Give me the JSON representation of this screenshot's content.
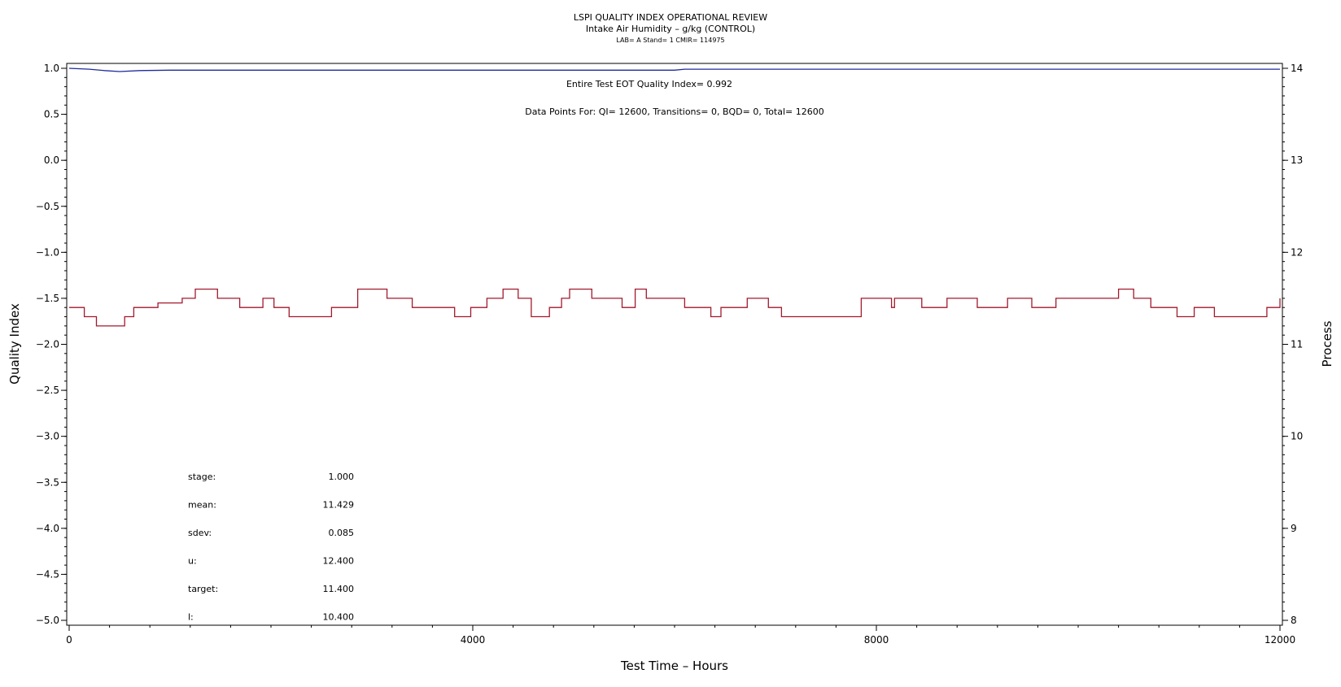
{
  "chart_data": {
    "type": "line",
    "title": "LSPI QUALITY INDEX OPERATIONAL REVIEW",
    "subtitle": "Intake Air Humidity – g/kg (CONTROL)",
    "subtitle2": "LAB= A Stand= 1 CMIR= 114975",
    "xlabel": "Test Time – Hours",
    "ylabel": "Quality Index",
    "y2label": "Process",
    "xlim": [
      0,
      12000
    ],
    "ylim": [
      -5.0,
      1.0
    ],
    "y2lim": [
      8,
      14
    ],
    "x_ticks": [
      {
        "v": 0,
        "label": "0"
      },
      {
        "v": 4000,
        "label": "4000"
      },
      {
        "v": 8000,
        "label": "8000"
      },
      {
        "v": 12000,
        "label": "12000"
      }
    ],
    "y_ticks": [
      {
        "v": 1.0,
        "label": "1.0"
      },
      {
        "v": 0.5,
        "label": "0.5"
      },
      {
        "v": 0.0,
        "label": "0.0"
      },
      {
        "v": -0.5,
        "label": "−0.5"
      },
      {
        "v": -1.0,
        "label": "−1.0"
      },
      {
        "v": -1.5,
        "label": "−1.5"
      },
      {
        "v": -2.0,
        "label": "−2.0"
      },
      {
        "v": -2.5,
        "label": "−2.5"
      },
      {
        "v": -3.0,
        "label": "−3.0"
      },
      {
        "v": -3.5,
        "label": "−3.5"
      },
      {
        "v": -4.0,
        "label": "−4.0"
      },
      {
        "v": -4.5,
        "label": "−4.5"
      },
      {
        "v": -5.0,
        "label": "−5.0"
      }
    ],
    "y2_ticks": [
      {
        "v": 14,
        "label": "14"
      },
      {
        "v": 13,
        "label": "13"
      },
      {
        "v": 12,
        "label": "12"
      },
      {
        "v": 11,
        "label": "11"
      },
      {
        "v": 10,
        "label": "10"
      },
      {
        "v": 9,
        "label": "9"
      },
      {
        "v": 8,
        "label": "8"
      }
    ],
    "annotations": {
      "eot": "Entire Test EOT Quality Index=    0.992",
      "points": "Data Points For: QI= 12600, Transitions=      0, BQD=      0, Total= 12600"
    },
    "stats": [
      {
        "label": "stage:",
        "value": "1.000"
      },
      {
        "label": "mean:",
        "value": "11.429"
      },
      {
        "label": "sdev:",
        "value": "0.085"
      },
      {
        "label": "u:",
        "value": "12.400"
      },
      {
        "label": "target:",
        "value": "11.400"
      },
      {
        "label": "l:",
        "value": "10.400"
      }
    ],
    "series": [
      {
        "axis": "left",
        "color": "#1f2a9c",
        "x": [
          0,
          200,
          350,
          500,
          700,
          1000,
          2000,
          4000,
          6000,
          6100,
          8000,
          10000,
          12000
        ],
        "y": [
          1.0,
          0.99,
          0.975,
          0.965,
          0.975,
          0.98,
          0.98,
          0.98,
          0.98,
          0.99,
          0.99,
          0.99,
          0.99
        ]
      },
      {
        "axis": "right",
        "color": "#a11a2e",
        "x": [
          0,
          150,
          270,
          550,
          640,
          880,
          1120,
          1250,
          1470,
          1690,
          1920,
          2030,
          2180,
          2600,
          2860,
          3150,
          3400,
          3820,
          3980,
          4140,
          4300,
          4450,
          4580,
          4760,
          4880,
          4960,
          5180,
          5480,
          5610,
          5720,
          6100,
          6360,
          6460,
          6720,
          6930,
          7060,
          7620,
          7850,
          8150,
          8180,
          8450,
          8700,
          9000,
          9300,
          9540,
          9780,
          10400,
          10550,
          10720,
          10980,
          11150,
          11350,
          11870,
          12000
        ],
        "y": [
          11.4,
          11.3,
          11.2,
          11.3,
          11.4,
          11.45,
          11.5,
          11.6,
          11.5,
          11.4,
          11.5,
          11.4,
          11.3,
          11.4,
          11.6,
          11.5,
          11.4,
          11.3,
          11.4,
          11.5,
          11.6,
          11.5,
          11.3,
          11.4,
          11.5,
          11.6,
          11.5,
          11.4,
          11.6,
          11.5,
          11.4,
          11.3,
          11.4,
          11.5,
          11.4,
          11.3,
          11.3,
          11.5,
          11.4,
          11.5,
          11.4,
          11.5,
          11.4,
          11.5,
          11.4,
          11.5,
          11.6,
          11.5,
          11.4,
          11.3,
          11.4,
          11.3,
          11.4,
          11.5
        ]
      }
    ]
  }
}
